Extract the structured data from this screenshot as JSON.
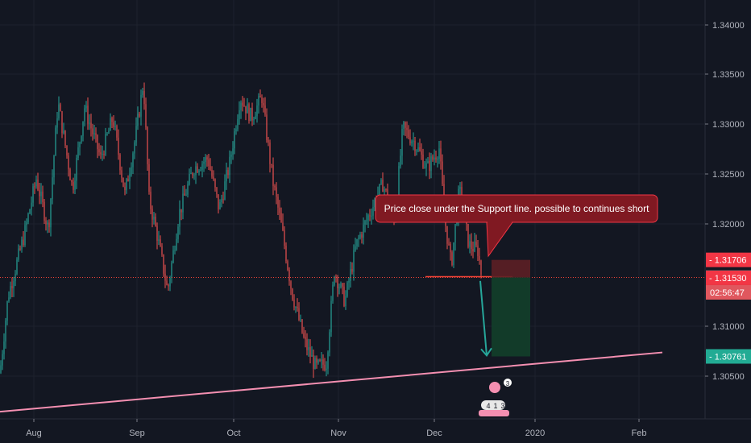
{
  "chart_data": {
    "type": "candlestick",
    "x_ticks": [
      "Aug",
      "Sep",
      "Oct",
      "Nov",
      "Dec",
      "2020",
      "Feb"
    ],
    "y_ticks": [
      "1.34000",
      "1.33500",
      "1.33000",
      "1.32500",
      "1.32000",
      "1.31000",
      "1.30500"
    ],
    "ylim": [
      1.3015,
      1.3425
    ],
    "price_path": [
      [
        0,
        1.306
      ],
      [
        10,
        1.3135
      ],
      [
        30,
        1.3195
      ],
      [
        45,
        1.325
      ],
      [
        60,
        1.32
      ],
      [
        72,
        1.3325
      ],
      [
        90,
        1.324
      ],
      [
        105,
        1.332
      ],
      [
        125,
        1.327
      ],
      [
        140,
        1.331
      ],
      [
        155,
        1.3235
      ],
      [
        168,
        1.329
      ],
      [
        178,
        1.3345
      ],
      [
        185,
        1.323
      ],
      [
        195,
        1.3195
      ],
      [
        208,
        1.314
      ],
      [
        222,
        1.3215
      ],
      [
        240,
        1.326
      ],
      [
        258,
        1.327
      ],
      [
        272,
        1.322
      ],
      [
        285,
        1.3265
      ],
      [
        298,
        1.333
      ],
      [
        312,
        1.331
      ],
      [
        325,
        1.333
      ],
      [
        338,
        1.325
      ],
      [
        350,
        1.32
      ],
      [
        362,
        1.314
      ],
      [
        378,
        1.309
      ],
      [
        392,
        1.3065
      ],
      [
        405,
        1.307
      ],
      [
        415,
        1.316
      ],
      [
        428,
        1.313
      ],
      [
        442,
        1.3185
      ],
      [
        458,
        1.3215
      ],
      [
        475,
        1.3245
      ],
      [
        490,
        1.321
      ],
      [
        500,
        1.33
      ],
      [
        515,
        1.3285
      ],
      [
        530,
        1.326
      ],
      [
        545,
        1.328
      ],
      [
        552,
        1.321
      ],
      [
        560,
        1.3165
      ],
      [
        570,
        1.324
      ],
      [
        582,
        1.3185
      ],
      [
        593,
        1.318
      ],
      [
        598,
        1.3153
      ]
    ],
    "support_line": {
      "x1": 0,
      "y1": 1.3022,
      "x2": 822,
      "y2": 1.308,
      "color": "#f48fb1"
    },
    "horizontal_level": {
      "price": 1.31534,
      "x1": 528,
      "x2": 636,
      "color": "#f44336"
    },
    "current_price_line": {
      "price": 1.31534,
      "color": "#f44336"
    },
    "position": {
      "entry": 1.31534,
      "stop": 1.31706,
      "target": 1.30761,
      "x1": 610,
      "x2": 658,
      "stop_color": "#5d1f25",
      "target_color": "#123d2a"
    },
    "arrow": {
      "x1": 596,
      "y1": 1.315,
      "x2": 604,
      "y2": 1.3077,
      "color": "#26a69a"
    },
    "price_badges": [
      {
        "label": "1.31706",
        "price": 1.31706,
        "bg": "#f23645"
      },
      {
        "label": "1.31534",
        "price": 1.31534,
        "bg": "#5d606b"
      },
      {
        "label": "1.31530",
        "price": 1.3153,
        "bg": "#f23645"
      },
      {
        "label": "1.30761",
        "price": 1.30761,
        "bg": "#22ab94"
      }
    ],
    "countdown": {
      "label": "02:56:47",
      "bg": "#e0575e"
    },
    "annotation": {
      "text": "Price close under the Support line. possible to continues short",
      "bg": "#801922",
      "border": "#f23645"
    },
    "event_badges": {
      "top": "3",
      "bottom": [
        "4",
        "1",
        "3"
      ]
    }
  }
}
